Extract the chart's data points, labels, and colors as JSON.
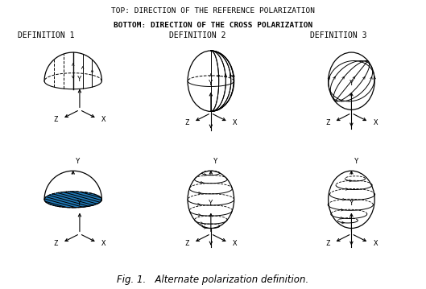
{
  "title_line1": "TOP: DIRECTION OF THE REFERENCE POLARIZATION",
  "title_line2": "BOTTOM: DIRECTION OF THE CROSS POLARIZATION",
  "def_labels": [
    "DEFINITION 1",
    "DEFINITION 2",
    "DEFINITION 3"
  ],
  "fig_caption": "Fig. 1.   Alternate polarization definition.",
  "bg_color": "#ffffff",
  "line_color": "#000000",
  "text_color": "#000000",
  "title_fontsize": 6.8,
  "label_fontsize": 7.0,
  "caption_fontsize": 8.5,
  "axis_label_fontsize": 6.5
}
